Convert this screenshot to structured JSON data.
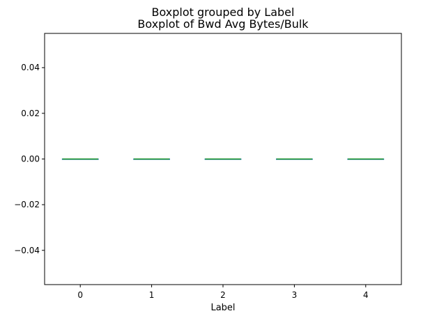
{
  "chart_data": {
    "type": "box",
    "suptitle": "Boxplot grouped by Label",
    "title": "Boxplot of Bwd Avg Bytes/Bulk",
    "xlabel": "Label",
    "ylabel": "",
    "categories": [
      "0",
      "1",
      "2",
      "3",
      "4"
    ],
    "boxes": [
      {
        "min": 0,
        "q1": 0,
        "median": 0,
        "q3": 0,
        "max": 0
      },
      {
        "min": 0,
        "q1": 0,
        "median": 0,
        "q3": 0,
        "max": 0
      },
      {
        "min": 0,
        "q1": 0,
        "median": 0,
        "q3": 0,
        "max": 0
      },
      {
        "min": 0,
        "q1": 0,
        "median": 0,
        "q3": 0,
        "max": 0
      },
      {
        "min": 0,
        "q1": 0,
        "median": 0,
        "q3": 0,
        "max": 0
      }
    ],
    "ylim": [
      -0.055,
      0.055
    ],
    "yticks": [
      -0.04,
      -0.02,
      0.0,
      0.02,
      0.04
    ],
    "ytick_labels": [
      "−0.04",
      "−0.02",
      "0.00",
      "0.02",
      "0.04"
    ],
    "grid": false,
    "colors": {
      "box": "#1f77b4",
      "median": "#2ca02c"
    }
  }
}
